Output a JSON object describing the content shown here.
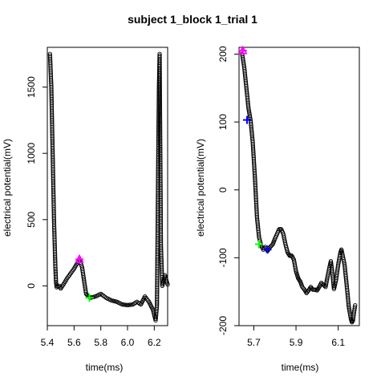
{
  "title": "subject 1_block 1_trial 1",
  "colors": {
    "points": "#000000",
    "magenta": "#ff00ff",
    "green": "#00ff00",
    "blue": "#0000ff"
  },
  "chart_data": [
    {
      "type": "scatter",
      "xlabel": "time(ms)",
      "ylabel": "electrical potential(mV)",
      "xlim": [
        5.4,
        6.3
      ],
      "ylim": [
        -300,
        1800
      ],
      "xticks": [
        "5.4",
        "5.6",
        "5.8",
        "6.0",
        "6.2"
      ],
      "yticks": [
        "0",
        "500",
        "1000",
        "1500"
      ],
      "trace": [
        [
          5.42,
          1750
        ],
        [
          5.43,
          1500
        ],
        [
          5.44,
          1000
        ],
        [
          5.45,
          500
        ],
        [
          5.46,
          150
        ],
        [
          5.465,
          30
        ],
        [
          5.47,
          -10
        ],
        [
          5.49,
          0
        ],
        [
          5.5,
          -20
        ],
        [
          5.52,
          10
        ],
        [
          5.55,
          60
        ],
        [
          5.6,
          130
        ],
        [
          5.64,
          200
        ],
        [
          5.66,
          140
        ],
        [
          5.69,
          -60
        ],
        [
          5.72,
          -90
        ],
        [
          5.76,
          -80
        ],
        [
          5.8,
          -60
        ],
        [
          5.84,
          -90
        ],
        [
          5.88,
          -110
        ],
        [
          5.92,
          -120
        ],
        [
          5.96,
          -140
        ],
        [
          6.0,
          -145
        ],
        [
          6.04,
          -140
        ],
        [
          6.07,
          -120
        ],
        [
          6.1,
          -140
        ],
        [
          6.13,
          -80
        ],
        [
          6.16,
          -120
        ],
        [
          6.19,
          -180
        ],
        [
          6.21,
          -260
        ],
        [
          6.22,
          -150
        ],
        [
          6.225,
          400
        ],
        [
          6.23,
          1000
        ],
        [
          6.235,
          1500
        ],
        [
          6.24,
          1750
        ],
        [
          6.25,
          300
        ],
        [
          6.26,
          0
        ],
        [
          6.28,
          80
        ],
        [
          6.3,
          10
        ]
      ],
      "markers": [
        {
          "x": 5.64,
          "y": 200,
          "color": "magenta",
          "shape": "plus-triangle"
        },
        {
          "x": 5.715,
          "y": -90,
          "color": "green",
          "shape": "plus"
        }
      ]
    },
    {
      "type": "scatter",
      "xlabel": "time(ms)",
      "ylabel": "electrical potential(mV)",
      "xlim": [
        5.63,
        6.2
      ],
      "ylim": [
        -200,
        210
      ],
      "xticks": [
        "5.7",
        "5.9",
        "6.1"
      ],
      "yticks": [
        "-200",
        "-100",
        "0",
        "100",
        "200"
      ],
      "trace": [
        [
          5.645,
          200
        ],
        [
          5.655,
          180
        ],
        [
          5.665,
          150
        ],
        [
          5.675,
          120
        ],
        [
          5.685,
          102
        ],
        [
          5.695,
          70
        ],
        [
          5.705,
          20
        ],
        [
          5.715,
          -40
        ],
        [
          5.725,
          -70
        ],
        [
          5.735,
          -82
        ],
        [
          5.745,
          -88
        ],
        [
          5.755,
          -84
        ],
        [
          5.765,
          -90
        ],
        [
          5.775,
          -85
        ],
        [
          5.79,
          -80
        ],
        [
          5.8,
          -72
        ],
        [
          5.81,
          -65
        ],
        [
          5.82,
          -58
        ],
        [
          5.83,
          -58
        ],
        [
          5.84,
          -65
        ],
        [
          5.85,
          -80
        ],
        [
          5.86,
          -92
        ],
        [
          5.87,
          -97
        ],
        [
          5.88,
          -97
        ],
        [
          5.89,
          -103
        ],
        [
          5.9,
          -120
        ],
        [
          5.91,
          -130
        ],
        [
          5.92,
          -135
        ],
        [
          5.93,
          -143
        ],
        [
          5.94,
          -147
        ],
        [
          5.95,
          -152
        ],
        [
          5.96,
          -148
        ],
        [
          5.97,
          -143
        ],
        [
          5.98,
          -147
        ],
        [
          5.99,
          -147
        ],
        [
          6.0,
          -148
        ],
        [
          6.01,
          -143
        ],
        [
          6.02,
          -137
        ],
        [
          6.03,
          -140
        ],
        [
          6.04,
          -143
        ],
        [
          6.05,
          -127
        ],
        [
          6.06,
          -112
        ],
        [
          6.065,
          -105
        ],
        [
          6.07,
          -117
        ],
        [
          6.08,
          -146
        ],
        [
          6.09,
          -132
        ],
        [
          6.1,
          -110
        ],
        [
          6.11,
          -93
        ],
        [
          6.115,
          -88
        ],
        [
          6.12,
          -95
        ],
        [
          6.13,
          -110
        ],
        [
          6.14,
          -140
        ],
        [
          6.15,
          -172
        ],
        [
          6.16,
          -190
        ],
        [
          6.165,
          -195
        ],
        [
          6.17,
          -192
        ],
        [
          6.175,
          -180
        ],
        [
          6.18,
          -170
        ]
      ],
      "markers": [
        {
          "x": 5.648,
          "y": 205,
          "color": "magenta",
          "shape": "plus-triangle"
        },
        {
          "x": 5.668,
          "y": 103,
          "color": "blue",
          "shape": "plus"
        },
        {
          "x": 5.725,
          "y": -80,
          "color": "green",
          "shape": "plus"
        },
        {
          "x": 5.765,
          "y": -88,
          "color": "blue",
          "shape": "plus"
        }
      ]
    }
  ]
}
